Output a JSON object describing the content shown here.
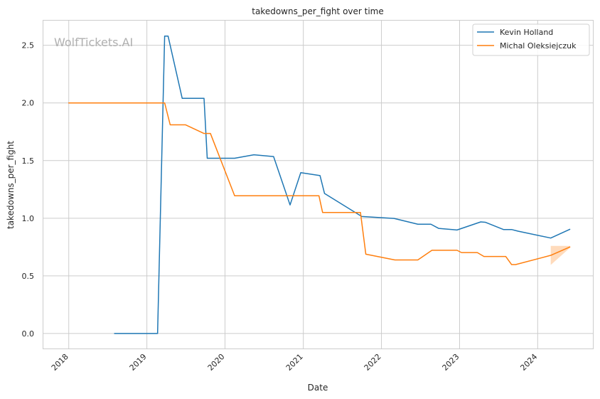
{
  "chart_data": {
    "type": "line",
    "title": "takedowns_per_fight over time",
    "xlabel": "Date",
    "ylabel": "takedowns_per_fight",
    "watermark": "WolfTickets.AI",
    "xlim": [
      "2017-09-01",
      "2024-09-15"
    ],
    "ylim": [
      -0.13,
      2.72
    ],
    "x_ticks": [
      "2018",
      "2019",
      "2020",
      "2021",
      "2022",
      "2023",
      "2024"
    ],
    "y_ticks": [
      "0.0",
      "0.5",
      "1.0",
      "1.5",
      "2.0",
      "2.5"
    ],
    "grid": true,
    "legend_position": "top-right",
    "colors": {
      "Kevin Holland": "#1f77b4",
      "Michal Oleksiejczuk": "#ff7f0e"
    },
    "series": [
      {
        "name": "Kevin Holland",
        "points": [
          [
            "2018-08-01",
            0.0
          ],
          [
            "2019-02-20",
            0.0
          ],
          [
            "2019-03-25",
            2.58
          ],
          [
            "2019-04-10",
            2.58
          ],
          [
            "2019-06-15",
            2.04
          ],
          [
            "2019-09-25",
            2.04
          ],
          [
            "2019-10-10",
            1.52
          ],
          [
            "2020-02-15",
            1.52
          ],
          [
            "2020-05-15",
            1.55
          ],
          [
            "2020-08-15",
            1.535
          ],
          [
            "2020-10-31",
            1.115
          ],
          [
            "2020-12-20",
            1.395
          ],
          [
            "2021-03-20",
            1.37
          ],
          [
            "2021-04-10",
            1.215
          ],
          [
            "2021-10-01",
            1.015
          ],
          [
            "2022-03-01",
            0.998
          ],
          [
            "2022-06-20",
            0.948
          ],
          [
            "2022-08-20",
            0.948
          ],
          [
            "2022-09-25",
            0.912
          ],
          [
            "2022-12-20",
            0.898
          ],
          [
            "2023-04-10",
            0.968
          ],
          [
            "2023-05-01",
            0.965
          ],
          [
            "2023-07-25",
            0.902
          ],
          [
            "2023-09-01",
            0.902
          ],
          [
            "2023-10-01",
            0.888
          ],
          [
            "2024-03-02",
            0.828
          ],
          [
            "2024-06-01",
            0.905
          ]
        ]
      },
      {
        "name": "Michal Oleksiejczuk",
        "points": [
          [
            "2017-12-30",
            2.0
          ],
          [
            "2019-03-25",
            2.0
          ],
          [
            "2019-04-20",
            1.81
          ],
          [
            "2019-07-01",
            1.81
          ],
          [
            "2019-09-25",
            1.735
          ],
          [
            "2019-10-25",
            1.735
          ],
          [
            "2020-02-15",
            1.195
          ],
          [
            "2021-03-15",
            1.195
          ],
          [
            "2021-04-01",
            1.05
          ],
          [
            "2021-09-25",
            1.05
          ],
          [
            "2021-10-20",
            0.688
          ],
          [
            "2022-03-05",
            0.638
          ],
          [
            "2022-06-20",
            0.638
          ],
          [
            "2022-08-25",
            0.722
          ],
          [
            "2022-12-20",
            0.722
          ],
          [
            "2023-01-10",
            0.702
          ],
          [
            "2023-03-25",
            0.702
          ],
          [
            "2023-04-25",
            0.668
          ],
          [
            "2023-08-05",
            0.668
          ],
          [
            "2023-09-01",
            0.598
          ],
          [
            "2023-09-20",
            0.598
          ],
          [
            "2024-03-02",
            0.678
          ],
          [
            "2024-06-01",
            0.752
          ]
        ]
      }
    ],
    "confidence_band": {
      "series": "Michal Oleksiejczuk",
      "upper": [
        [
          "2024-03-02",
          0.76
        ],
        [
          "2024-06-01",
          0.76
        ]
      ],
      "lower": [
        [
          "2024-03-02",
          0.595
        ],
        [
          "2024-06-01",
          0.745
        ]
      ]
    }
  }
}
